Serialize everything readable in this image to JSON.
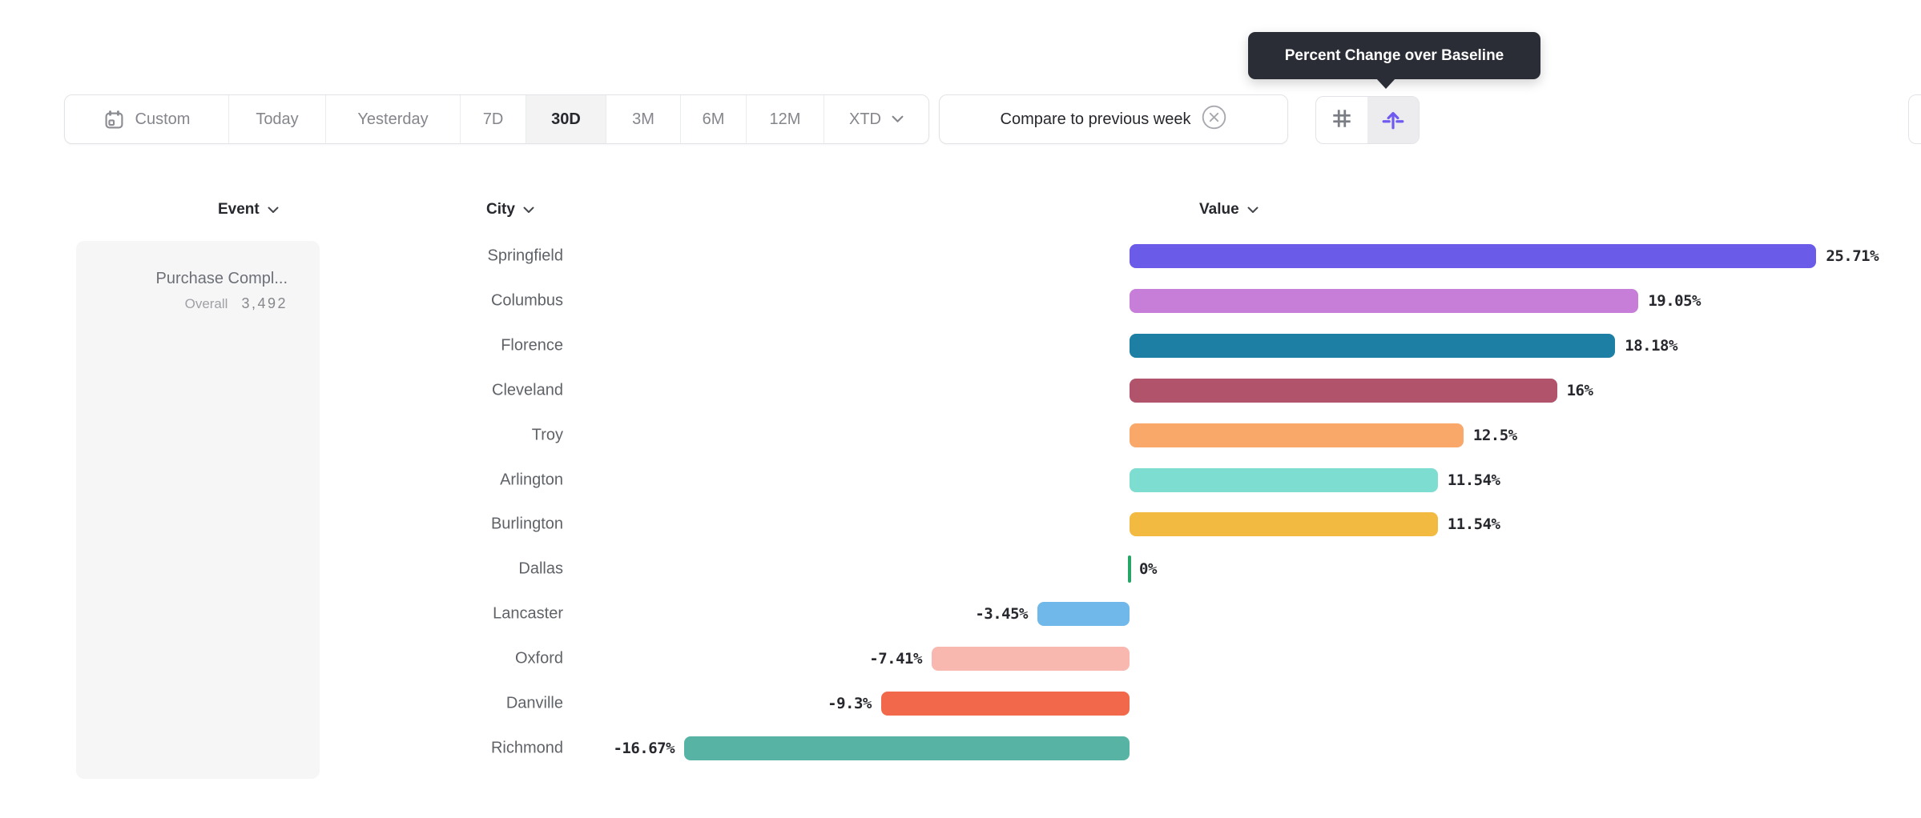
{
  "tooltip": {
    "text": "Percent Change over Baseline"
  },
  "date_range_toolbar": {
    "items": [
      {
        "label": "Custom",
        "icon": "calendar-icon",
        "selected": false
      },
      {
        "label": "Today",
        "selected": false
      },
      {
        "label": "Yesterday",
        "selected": false
      },
      {
        "label": "7D",
        "selected": false
      },
      {
        "label": "30D",
        "selected": true
      },
      {
        "label": "3M",
        "selected": false
      },
      {
        "label": "6M",
        "selected": false
      },
      {
        "label": "12M",
        "selected": false
      },
      {
        "label": "XTD",
        "icon": "chevron-down-icon",
        "selected": false
      }
    ]
  },
  "compare_chip": {
    "label": "Compare to previous week",
    "close_icon": "x-circle-icon"
  },
  "chart_toolbar": {
    "buttons": [
      {
        "icon": "grid-hash-icon",
        "active": false
      },
      {
        "icon": "percent-change-baseline-icon",
        "active": true
      }
    ]
  },
  "table_headers": {
    "event": "Event",
    "city": "City",
    "value": "Value"
  },
  "event_panel": {
    "event_name": "Purchase Compl...",
    "metric_label": "Overall",
    "metric_value": "3,492"
  },
  "chart_data": {
    "type": "bar",
    "orientation": "horizontal",
    "title": "Percent Change over Baseline",
    "categories": [
      "Springfield",
      "Columbus",
      "Florence",
      "Cleveland",
      "Troy",
      "Arlington",
      "Burlington",
      "Dallas",
      "Lancaster",
      "Oxford",
      "Danville",
      "Richmond"
    ],
    "values": [
      25.71,
      19.05,
      18.18,
      16,
      12.5,
      11.54,
      11.54,
      0,
      -3.45,
      -7.41,
      -9.3,
      -16.67
    ],
    "value_labels": [
      "25.71%",
      "19.05%",
      "18.18%",
      "16%",
      "12.5%",
      "11.54%",
      "11.54%",
      "0%",
      "-3.45%",
      "-7.41%",
      "-9.3%",
      "-16.67%"
    ],
    "bar_colors": [
      "#6a5be8",
      "#c77ed8",
      "#1d7fa4",
      "#b0536b",
      "#f9a869",
      "#7eddd1",
      "#f3ba41",
      "#27a566",
      "#70b8ea",
      "#f9b8af",
      "#f2684b",
      "#57b4a5"
    ],
    "baseline_value": 0,
    "zero_marker_color": "#27a566",
    "xlim": [
      -16.67,
      25.71
    ],
    "grid": false,
    "legend": false
  },
  "colors": {
    "accent": "#6f5bef",
    "tooltip_bg": "#2b2d36",
    "selected_segment_bg": "#f3f3f4",
    "panel_bg": "#f6f6f7",
    "border": "#e2e3e6",
    "city_label": "#5f6368",
    "value_label": "#26282d"
  }
}
